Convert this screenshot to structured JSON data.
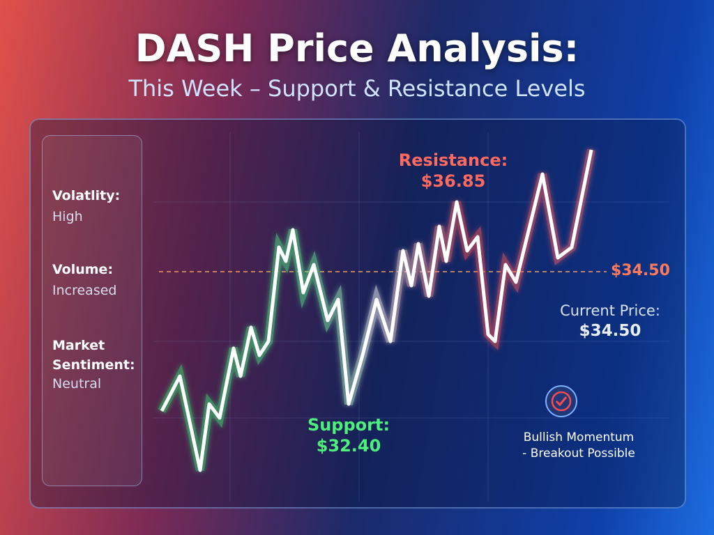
{
  "header": {
    "title": "DASH Price Analysis:",
    "subtitle": "This Week – Support & Resistance Levels"
  },
  "sidebar": {
    "items": [
      {
        "label": "Volatlity:",
        "value": "High"
      },
      {
        "label": "Volume:",
        "value": "Increased"
      },
      {
        "label": "Market Sentiment:",
        "value": "Neutral"
      }
    ]
  },
  "chart": {
    "resistance": {
      "label": "Resistance:",
      "value": "$36.85"
    },
    "support": {
      "label": "Support:",
      "value": "$32.40"
    },
    "level_label": "$34.50",
    "current_price": {
      "label": "Current Price:",
      "value": "$34.50"
    },
    "momentum": [
      "Bullish Momentum",
      "- Breakout Possible"
    ]
  }
}
